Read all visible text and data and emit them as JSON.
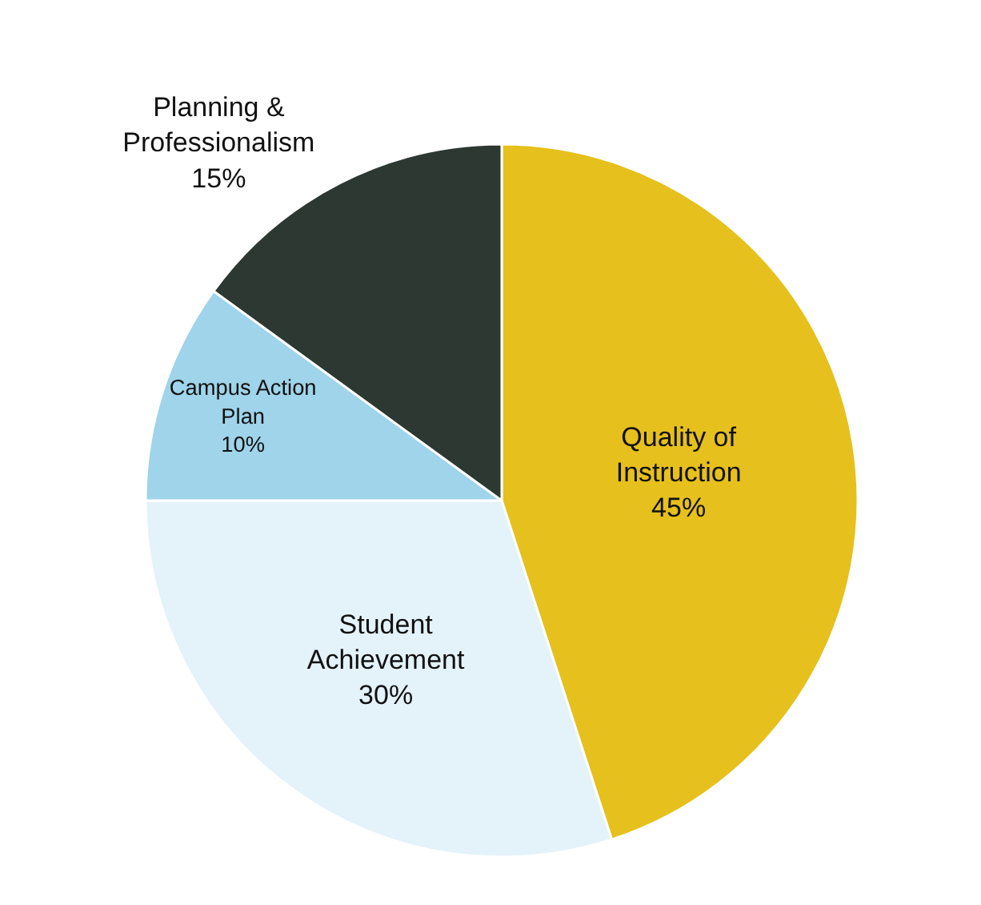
{
  "chart_data": {
    "type": "pie",
    "categories": [
      "Quality of Instruction",
      "Student Achievement",
      "Campus Action Plan",
      "Planning & Professionalism"
    ],
    "values": [
      45,
      30,
      10,
      15
    ],
    "value_labels": [
      "45%",
      "30%",
      "10%",
      "15%"
    ],
    "colors": [
      "#e6c01c",
      "#e4f2fa",
      "#9fd4ea",
      "#2c3831"
    ],
    "legend": false
  }
}
